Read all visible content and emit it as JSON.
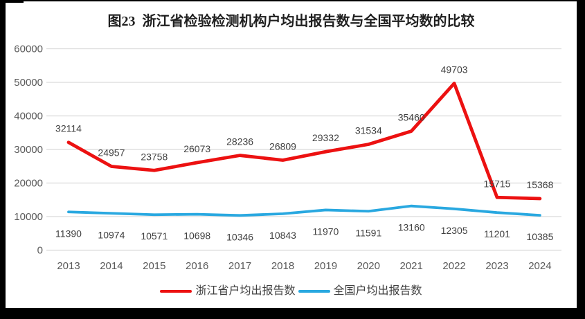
{
  "title": "图23  浙江省检验检测机构户均出报告数与全国平均数的比较",
  "chart_data": {
    "type": "line",
    "title": "图23  浙江省检验检测机构户均出报告数与全国平均数的比较",
    "categories": [
      "2013",
      "2014",
      "2015",
      "2016",
      "2017",
      "2018",
      "2019",
      "2020",
      "2021",
      "2022",
      "2023",
      "2024"
    ],
    "series": [
      {
        "name": "浙江省户均出报告数",
        "color": "#ec1111",
        "values": [
          32114,
          24957,
          23758,
          26073,
          28236,
          26809,
          29332,
          31534,
          35460,
          49703,
          15715,
          15368
        ]
      },
      {
        "name": "全国户均出报告数",
        "color": "#29a8e0",
        "values": [
          11390,
          10974,
          10571,
          10698,
          10346,
          10843,
          11970,
          11591,
          13160,
          12305,
          11201,
          10385
        ]
      }
    ],
    "ylim": [
      0,
      60000
    ],
    "yticks": [
      0,
      10000,
      20000,
      30000,
      40000,
      50000,
      60000
    ],
    "grid": true,
    "data_labels": true,
    "legend_position": "bottom"
  },
  "colors": {
    "grid": "#d9d9d9",
    "axis_text": "#595959",
    "data_label_text": "#404040",
    "background": "#ffffff",
    "frame": "#000000"
  }
}
